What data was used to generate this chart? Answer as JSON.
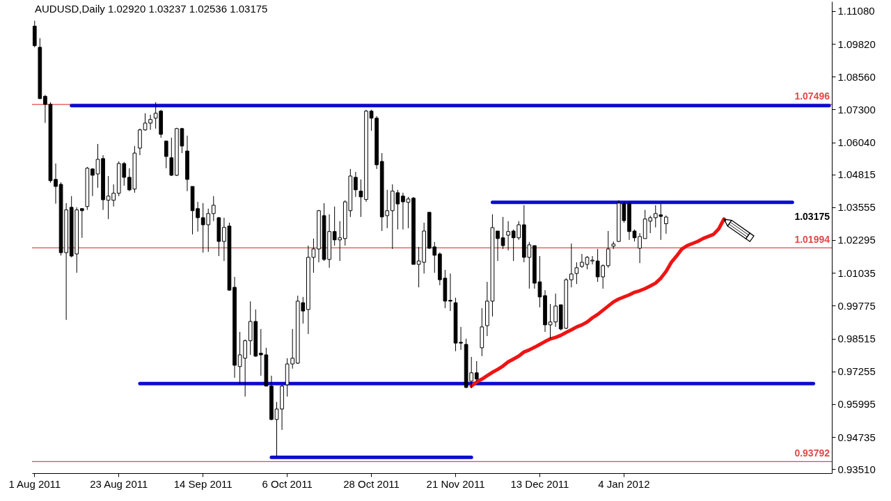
{
  "chart_data": {
    "type": "candlestick",
    "title": "AUDUSD,Daily 1.02920 1.03237 1.02536 1.03175",
    "categories": [
      "1 Aug 2011",
      null,
      null,
      null,
      null,
      null,
      null,
      null,
      null,
      null,
      null,
      null,
      null,
      null,
      null,
      null,
      "23 Aug 2011",
      null,
      null,
      null,
      null,
      null,
      null,
      null,
      null,
      null,
      null,
      null,
      null,
      null,
      null,
      null,
      "14 Sep 2011",
      null,
      null,
      null,
      null,
      null,
      null,
      null,
      null,
      null,
      null,
      null,
      null,
      null,
      null,
      null,
      "6 Oct 2011",
      null,
      null,
      null,
      null,
      null,
      null,
      null,
      null,
      null,
      null,
      null,
      null,
      null,
      null,
      null,
      "28 Oct 2011",
      null,
      null,
      null,
      null,
      null,
      null,
      null,
      null,
      null,
      null,
      null,
      null,
      null,
      null,
      null,
      "21 Nov 2011",
      null,
      null,
      null,
      null,
      null,
      null,
      null,
      null,
      null,
      null,
      null,
      null,
      null,
      null,
      null,
      "13 Dec 2011",
      null,
      null,
      null,
      null,
      null,
      null,
      null,
      null,
      null,
      null,
      null,
      null,
      null,
      null,
      null,
      "4 Jan 2012",
      null,
      null,
      null,
      null,
      null,
      null,
      null,
      null,
      null,
      null,
      null,
      null,
      null,
      null,
      null,
      null,
      null,
      null,
      null,
      null,
      null,
      null,
      null,
      null,
      null,
      null,
      null,
      null,
      null,
      null,
      null,
      null,
      null,
      null,
      null,
      null,
      null,
      null,
      null
    ],
    "ohlc": [
      [
        1.105,
        1.1071,
        1.0969,
        1.0975
      ],
      [
        1.0969,
        1.1004,
        1.077,
        1.0772
      ],
      [
        1.0781,
        1.0786,
        1.0679,
        1.075
      ],
      [
        1.075,
        1.0758,
        1.0449,
        1.0457
      ],
      [
        1.0462,
        1.0523,
        1.0369,
        1.0435
      ],
      [
        1.0443,
        1.0451,
        1.017,
        1.0181
      ],
      [
        1.0181,
        1.0371,
        0.9923,
        1.0345
      ],
      [
        1.0355,
        1.0398,
        1.0163,
        1.0168
      ],
      [
        1.0176,
        1.0355,
        1.0104,
        1.0345
      ],
      [
        1.035,
        1.0352,
        1.0238,
        1.0342
      ],
      [
        1.0358,
        1.051,
        1.0345,
        1.0505
      ],
      [
        1.0502,
        1.0505,
        1.0398,
        1.0478
      ],
      [
        1.0483,
        1.0598,
        1.043,
        1.0539
      ],
      [
        1.0542,
        1.0555,
        1.0345,
        1.0384
      ],
      [
        1.0382,
        1.0475,
        1.031,
        1.0398
      ],
      [
        1.0382,
        1.0443,
        1.0358,
        1.0409
      ],
      [
        1.0409,
        1.0531,
        1.0398,
        1.0523
      ],
      [
        1.0523,
        1.0529,
        1.0438,
        1.047
      ],
      [
        1.047,
        1.0505,
        1.0417,
        1.0422
      ],
      [
        1.0425,
        1.059,
        1.0411,
        1.0563
      ],
      [
        1.0582,
        1.0657,
        1.0555,
        1.0652
      ],
      [
        1.0652,
        1.0716,
        1.0649,
        1.0678
      ],
      [
        1.0678,
        1.071,
        1.0652,
        1.0692
      ],
      [
        1.0697,
        1.0758,
        1.0657,
        1.0716
      ],
      [
        1.0724,
        1.0729,
        1.0622,
        1.0635
      ],
      [
        1.0609,
        1.0611,
        1.0505,
        1.055
      ],
      [
        1.0545,
        1.0622,
        1.0475,
        1.0478
      ],
      [
        1.0478,
        1.066,
        1.0475,
        1.0657
      ],
      [
        1.0657,
        1.066,
        1.0563,
        1.059
      ],
      [
        1.0571,
        1.063,
        1.0417,
        1.0462
      ],
      [
        1.0435,
        1.0435,
        1.0251,
        1.0342
      ],
      [
        1.035,
        1.0376,
        1.0262,
        1.0315
      ],
      [
        1.0315,
        1.0371,
        1.0181,
        1.0288
      ],
      [
        1.0288,
        1.035,
        1.0184,
        1.0331
      ],
      [
        1.0331,
        1.0398,
        1.0302,
        1.0363
      ],
      [
        1.0315,
        1.0318,
        1.0168,
        1.0224
      ],
      [
        1.0224,
        1.0315,
        1.0149,
        1.0278
      ],
      [
        1.0283,
        1.0296,
        1.0035,
        1.0037
      ],
      [
        1.0048,
        1.0088,
        0.9701,
        0.9749
      ],
      [
        0.9744,
        0.9877,
        0.9677,
        0.9789
      ],
      [
        0.9776,
        0.9848,
        0.9629,
        0.9843
      ],
      [
        0.9843,
        0.9994,
        0.9789,
        0.9917
      ],
      [
        0.9917,
        0.9963,
        0.9781,
        0.9784
      ],
      [
        0.9795,
        0.9888,
        0.9709,
        0.9789
      ],
      [
        0.9789,
        0.9816,
        0.9669,
        0.9669
      ],
      [
        0.9669,
        0.9709,
        0.9538,
        0.9541
      ],
      [
        0.9541,
        0.9608,
        0.94,
        0.9581
      ],
      [
        0.9581,
        0.9674,
        0.9501,
        0.9669
      ],
      [
        0.9674,
        0.9776,
        0.9629,
        0.9754
      ],
      [
        0.9754,
        0.9888,
        0.9736,
        0.9776
      ],
      [
        0.9757,
        1.0016,
        0.9754,
        0.9995
      ],
      [
        0.9989,
        1.0011,
        0.9909,
        0.9957
      ],
      [
        0.9963,
        1.0208,
        0.9869,
        1.0163
      ],
      [
        1.0163,
        1.0235,
        1.0104,
        1.0195
      ],
      [
        1.0195,
        1.0345,
        1.0144,
        1.0342
      ],
      [
        1.0323,
        1.0371,
        1.0149,
        1.0155
      ],
      [
        1.0155,
        1.0328,
        1.0123,
        1.0262
      ],
      [
        1.0262,
        1.0358,
        1.0208,
        1.023
      ],
      [
        1.023,
        1.0302,
        1.0149,
        1.0238
      ],
      [
        1.0235,
        1.0382,
        1.0208,
        1.0376
      ],
      [
        1.0342,
        1.0502,
        1.0318,
        1.0475
      ],
      [
        1.047,
        1.0491,
        1.0395,
        1.0422
      ],
      [
        1.0417,
        1.0462,
        1.0318,
        1.0395
      ],
      [
        1.0385,
        1.0729,
        1.0376,
        1.0724
      ],
      [
        1.0724,
        1.0729,
        1.0649,
        1.0697
      ],
      [
        1.0697,
        1.0705,
        1.0502,
        1.0518
      ],
      [
        1.0531,
        1.0563,
        1.0264,
        1.0318
      ],
      [
        1.0323,
        1.0422,
        1.0275,
        1.0342
      ],
      [
        1.0342,
        1.0443,
        1.0195,
        1.0417
      ],
      [
        1.0411,
        1.0422,
        1.027,
        1.0368
      ],
      [
        1.0398,
        1.0411,
        1.027,
        1.0376
      ],
      [
        1.0374,
        1.0395,
        1.0275,
        1.0387
      ],
      [
        1.039,
        1.0395,
        1.0136,
        1.0136
      ],
      [
        1.0136,
        1.0203,
        1.0048,
        1.0149
      ],
      [
        1.0144,
        1.0296,
        1.0101,
        1.0264
      ],
      [
        1.0336,
        1.0336,
        1.0195,
        1.0198
      ],
      [
        1.0203,
        1.0222,
        1.0104,
        1.0171
      ],
      [
        1.0176,
        1.0182,
        1.0056,
        1.0077
      ],
      [
        1.0083,
        1.0115,
        0.9968,
        0.9995
      ],
      [
        0.9998,
        1.0101,
        0.9957,
        0.9995
      ],
      [
        0.9989,
        1.0008,
        0.9803,
        0.9834
      ],
      [
        0.9837,
        0.9896,
        0.9808,
        0.9834
      ],
      [
        0.9829,
        0.9851,
        0.9661,
        0.9664
      ],
      [
        0.9688,
        0.9781,
        0.9661,
        0.972
      ],
      [
        0.972,
        0.9765,
        0.9688,
        0.9696
      ],
      [
        0.9816,
        0.9968,
        0.9784,
        0.9896
      ],
      [
        0.9901,
        1.0069,
        0.9861,
        0.9995
      ],
      [
        0.9995,
        1.0328,
        0.9936,
        1.0277
      ],
      [
        1.0264,
        1.0264,
        1.0149,
        1.0235
      ],
      [
        1.0238,
        1.0318,
        1.0195,
        1.0208
      ],
      [
        1.0248,
        1.0302,
        1.019,
        1.0262
      ],
      [
        1.0264,
        1.027,
        1.0149,
        1.0238
      ],
      [
        1.0238,
        1.0302,
        1.023,
        1.0288
      ],
      [
        1.0288,
        1.0363,
        1.0144,
        1.0163
      ],
      [
        1.0163,
        1.0222,
        1.0043,
        1.0211
      ],
      [
        1.0208,
        1.0208,
        1.0043,
        1.0064
      ],
      [
        1.0069,
        1.0168,
        0.9971,
        1.0011
      ],
      [
        1.0016,
        1.0037,
        0.9877,
        0.9904
      ],
      [
        0.9904,
        0.9984,
        0.9851,
        0.9915
      ],
      [
        0.9915,
        1.0024,
        0.9896,
        0.9976
      ],
      [
        0.9981,
        0.9981,
        0.9883,
        0.9888
      ],
      [
        0.9891,
        1.0083,
        0.9888,
        1.0077
      ],
      [
        1.0077,
        1.0216,
        1.0048,
        1.0099
      ],
      [
        1.0101,
        1.0144,
        1.0061,
        1.0123
      ],
      [
        1.0128,
        1.0176,
        1.0123,
        1.0144
      ],
      [
        1.0136,
        1.0168,
        1.0117,
        1.0163
      ],
      [
        1.0149,
        1.0168,
        1.0136,
        1.0152
      ],
      [
        1.0149,
        1.0195,
        1.0069,
        1.0088
      ],
      [
        1.0088,
        1.0136,
        1.0043,
        1.0131
      ],
      [
        1.0131,
        1.0264,
        1.0123,
        1.0195
      ],
      [
        1.0206,
        1.0224,
        1.0195,
        1.0214
      ],
      [
        1.0224,
        1.0382,
        1.0222,
        1.0371
      ],
      [
        1.0368,
        1.0376,
        1.0296,
        1.0304
      ],
      [
        1.0368,
        1.0376,
        1.023,
        1.0262
      ],
      [
        1.0264,
        1.027,
        1.0224,
        1.0238
      ],
      [
        1.0198,
        1.0256,
        1.0141,
        1.0243
      ],
      [
        1.0235,
        1.0345,
        1.0235,
        1.031
      ],
      [
        1.0302,
        1.0323,
        1.0256,
        1.0315
      ],
      [
        1.0315,
        1.0363,
        1.0278,
        1.0331
      ],
      [
        1.0326,
        1.0368,
        1.023,
        1.032
      ],
      [
        1.0292,
        1.03237,
        1.02536,
        1.03175
      ],
      null,
      null,
      null,
      null,
      null,
      null,
      null,
      null,
      null,
      null,
      null,
      null,
      null,
      null,
      null,
      null,
      null,
      null,
      null,
      null,
      null,
      null,
      null,
      null,
      null,
      null,
      null,
      null,
      null,
      null,
      null
    ],
    "color": "#000000",
    "ylim": [
      0.9335,
      1.1145
    ],
    "yticks": [
      {
        "value": 1.1108,
        "label": "1.11080"
      },
      {
        "value": 1.0982,
        "label": "1.09820"
      },
      {
        "value": 1.0856,
        "label": "1.08560"
      },
      {
        "value": 1.073,
        "label": "1.07300"
      },
      {
        "value": 1.0604,
        "label": "1.06040"
      },
      1.04815,
      1.03555,
      1.02295,
      1.01035,
      0.99775,
      0.98515,
      0.97255,
      0.95995,
      0.94735,
      {
        "value": 0.9351,
        "label": "0.93510"
      }
    ],
    "series": [
      {
        "type": "line",
        "color": "#0b0bd0",
        "values": [
          null,
          null,
          null,
          null,
          null,
          null,
          null,
          1.0745,
          1.0745,
          1.0745,
          1.0745,
          1.0745,
          1.0745,
          1.0745,
          1.0745,
          1.0745,
          1.0745,
          1.0745,
          1.0745,
          1.0745,
          1.0745,
          1.0745,
          1.0745,
          1.0745,
          1.0745,
          1.0745,
          1.0745,
          1.0745,
          1.0745,
          1.0745,
          1.0745,
          1.0745,
          1.0745,
          1.0745,
          1.0745,
          1.0745,
          1.0745,
          1.0745,
          1.0745,
          1.0745,
          1.0745,
          1.0745,
          1.0745,
          1.0745,
          1.0745,
          1.0745,
          1.0745,
          1.0745,
          1.0745,
          1.0745,
          1.0745,
          1.0745,
          1.0745,
          1.0745,
          1.0745,
          1.0745,
          1.0745,
          1.0745,
          1.0745,
          1.0745,
          1.0745,
          1.0745,
          1.0745,
          1.0745,
          1.0745,
          1.0745,
          1.0745,
          1.0745,
          1.0745,
          1.0745,
          1.0745,
          1.0745,
          1.0745,
          1.0745,
          1.0745,
          1.0745,
          1.0745,
          1.0745,
          1.0745,
          1.0745,
          1.0745,
          1.0745,
          1.0745,
          1.0745,
          1.0745,
          1.0745,
          1.0745,
          1.0745,
          1.0745,
          1.0745,
          1.0745,
          1.0745,
          1.0745,
          1.0745,
          1.0745,
          1.0745,
          1.0745,
          1.0745,
          1.0745,
          1.0745,
          1.0745,
          1.0745,
          1.0745,
          1.0745,
          1.0745,
          1.0745,
          1.0745,
          1.0745,
          1.0745,
          1.0745,
          1.0745,
          1.0745,
          1.0745,
          1.0745,
          1.0745,
          1.0745,
          1.0745,
          1.0745,
          1.0745,
          1.0745,
          1.0745,
          1.0745,
          1.0745,
          1.0745,
          1.0745,
          1.0745,
          1.0745,
          1.0745,
          1.0745,
          1.0745,
          1.0745,
          1.0745,
          1.0745,
          1.0745,
          1.0745,
          1.0745,
          1.0745,
          1.0745,
          1.0745,
          1.0745,
          1.0745,
          1.0745,
          1.0745,
          1.0745,
          1.0745,
          1.0745,
          1.0745,
          1.0745,
          1.0745,
          1.0745,
          1.0745,
          1.0745
        ]
      },
      {
        "type": "line",
        "color": "#0b0bd0",
        "values": [
          null,
          null,
          null,
          null,
          null,
          null,
          null,
          null,
          null,
          null,
          null,
          null,
          null,
          null,
          null,
          null,
          null,
          null,
          null,
          null,
          null,
          null,
          null,
          null,
          null,
          null,
          null,
          null,
          null,
          null,
          null,
          null,
          null,
          null,
          null,
          null,
          null,
          null,
          null,
          null,
          null,
          null,
          null,
          null,
          null,
          null,
          null,
          null,
          null,
          null,
          null,
          null,
          null,
          null,
          null,
          null,
          null,
          null,
          null,
          null,
          null,
          null,
          null,
          null,
          null,
          null,
          null,
          null,
          null,
          null,
          null,
          null,
          null,
          null,
          null,
          null,
          null,
          null,
          null,
          null,
          null,
          null,
          null,
          null,
          null,
          null,
          null,
          1.0374,
          1.0374,
          1.0374,
          1.0374,
          1.0374,
          1.0374,
          1.0374,
          1.0374,
          1.0374,
          1.0374,
          1.0374,
          1.0374,
          1.0374,
          1.0374,
          1.0374,
          1.0374,
          1.0374,
          1.0374,
          1.0374,
          1.0374,
          1.0374,
          1.0374,
          1.0374,
          1.0374,
          1.0374,
          1.0374,
          1.0374,
          1.0374,
          1.0374,
          1.0374,
          1.0374,
          1.0374,
          1.0374,
          1.0374,
          1.0374,
          1.0374,
          1.0374,
          1.0374,
          1.0374,
          1.0374,
          1.0374,
          1.0374,
          1.0374,
          1.0374,
          1.0374,
          1.0374,
          1.0374,
          1.0374,
          1.0374,
          1.0374,
          1.0374,
          1.0374,
          1.0374,
          1.0374,
          1.0374,
          1.0374,
          1.0374,
          1.0374,
          null,
          null,
          null,
          null,
          null,
          null,
          null
        ]
      },
      {
        "type": "line",
        "color": "#0b0bd0",
        "values": [
          null,
          null,
          null,
          null,
          null,
          null,
          null,
          null,
          null,
          null,
          null,
          null,
          null,
          null,
          null,
          null,
          null,
          null,
          null,
          null,
          0.9679,
          0.9679,
          0.9679,
          0.9679,
          0.9679,
          0.9679,
          0.9679,
          0.9679,
          0.9679,
          0.9679,
          0.9679,
          0.9679,
          0.9679,
          0.9679,
          0.9679,
          0.9679,
          0.9679,
          0.9679,
          0.9679,
          0.9679,
          0.9679,
          0.9679,
          0.9679,
          0.9679,
          0.9679,
          0.9679,
          0.9679,
          0.9679,
          0.9679,
          0.9679,
          0.9679,
          0.9679,
          0.9679,
          0.9679,
          0.9679,
          0.9679,
          0.9679,
          0.9679,
          0.9679,
          0.9679,
          0.9679,
          0.9679,
          0.9679,
          0.9679,
          0.9679,
          0.9679,
          0.9679,
          0.9679,
          0.9679,
          0.9679,
          0.9679,
          0.9679,
          0.9679,
          0.9679,
          0.9679,
          0.9679,
          0.9679,
          0.9679,
          0.9679,
          0.9679,
          0.9679,
          0.9679,
          0.9679,
          0.9679,
          0.9679,
          0.9679,
          0.9679,
          0.9679,
          0.9679,
          0.9679,
          0.9679,
          0.9679,
          0.9679,
          0.9679,
          0.9679,
          0.9679,
          0.9679,
          0.9679,
          0.9679,
          0.9679,
          0.9679,
          0.9679,
          0.9679,
          0.9679,
          0.9679,
          0.9679,
          0.9679,
          0.9679,
          0.9679,
          0.9679,
          0.9679,
          0.9679,
          0.9679,
          0.9679,
          0.9679,
          0.9679,
          0.9679,
          0.9679,
          0.9679,
          0.9679,
          0.9679,
          0.9679,
          0.9679,
          0.9679,
          0.9679,
          0.9679,
          0.9679,
          0.9679,
          0.9679,
          0.9679,
          0.9679,
          0.9679,
          0.9679,
          0.9679,
          0.9679,
          0.9679,
          0.9679,
          0.9679,
          0.9679,
          0.9679,
          0.9679,
          0.9679,
          0.9679,
          0.9679,
          0.9679,
          0.9679,
          0.9679,
          0.9679,
          0.9679,
          null,
          null,
          null
        ]
      },
      {
        "type": "line",
        "color": "#0b0bd0",
        "values": [
          null,
          null,
          null,
          null,
          null,
          null,
          null,
          null,
          null,
          null,
          null,
          null,
          null,
          null,
          null,
          null,
          null,
          null,
          null,
          null,
          null,
          null,
          null,
          null,
          null,
          null,
          null,
          null,
          null,
          null,
          null,
          null,
          null,
          null,
          null,
          null,
          null,
          null,
          null,
          null,
          null,
          null,
          null,
          null,
          null,
          0.9396,
          0.9396,
          0.9396,
          0.9396,
          0.9396,
          0.9396,
          0.9396,
          0.9396,
          0.9396,
          0.9396,
          0.9396,
          0.9396,
          0.9396,
          0.9396,
          0.9396,
          0.9396,
          0.9396,
          0.9396,
          0.9396,
          0.9396,
          0.9396,
          0.9396,
          0.9396,
          0.9396,
          0.9396,
          0.9396,
          0.9396,
          0.9396,
          0.9396,
          0.9396,
          0.9396,
          0.9396,
          0.9396,
          0.9396,
          0.9396,
          0.9396,
          0.9396,
          0.9396,
          0.9396,
          null,
          null,
          null,
          null,
          null,
          null,
          null,
          null,
          null,
          null,
          null,
          null,
          null,
          null,
          null,
          null,
          null,
          null,
          null,
          null,
          null,
          null,
          null,
          null,
          null,
          null,
          null,
          null,
          null,
          null,
          null,
          null,
          null,
          null,
          null,
          null,
          null,
          null,
          null,
          null,
          null,
          null,
          null,
          null,
          null,
          null,
          null,
          null,
          null,
          null,
          null,
          null,
          null,
          null,
          null,
          null,
          null,
          null,
          null,
          null,
          null,
          null,
          null,
          null,
          null,
          null,
          null,
          null
        ]
      },
      {
        "type": "line",
        "color": "#ee1414",
        "values": [
          null,
          null,
          null,
          null,
          null,
          null,
          null,
          null,
          null,
          null,
          null,
          null,
          null,
          null,
          null,
          null,
          null,
          null,
          null,
          null,
          null,
          null,
          null,
          null,
          null,
          null,
          null,
          null,
          null,
          null,
          null,
          null,
          null,
          null,
          null,
          null,
          null,
          null,
          null,
          null,
          null,
          null,
          null,
          null,
          null,
          null,
          null,
          null,
          null,
          null,
          null,
          null,
          null,
          null,
          null,
          null,
          null,
          null,
          null,
          null,
          null,
          null,
          null,
          null,
          null,
          null,
          null,
          null,
          null,
          null,
          null,
          null,
          null,
          null,
          null,
          null,
          null,
          null,
          null,
          null,
          null,
          null,
          null,
          0.9669,
          0.9685,
          0.9696,
          0.9709,
          0.9722,
          0.9733,
          0.9746,
          0.9762,
          0.9773,
          0.9784,
          0.98,
          0.9808,
          0.9818,
          0.9829,
          0.984,
          0.985,
          0.9856,
          0.9864,
          0.9875,
          0.9885,
          0.9896,
          0.9904,
          0.9915,
          0.9931,
          0.9944,
          0.996,
          0.9976,
          0.9992,
          1.0003,
          1.0011,
          1.0019,
          1.0029,
          1.0035,
          1.0043,
          1.0053,
          1.0064,
          1.0083,
          1.0109,
          1.0144,
          1.0168,
          1.0195,
          1.0208,
          1.0216,
          1.0224,
          1.0235,
          1.0243,
          1.0251,
          1.0272,
          1.031,
          null,
          null,
          null,
          null,
          null,
          null,
          null,
          null,
          null,
          null,
          null,
          null,
          null,
          null,
          null,
          null,
          null,
          null,
          null,
          null
        ]
      }
    ],
    "ref_lines": [
      {
        "axis": "y",
        "value": 1.07496,
        "label": "1.07496",
        "color": "#e04848"
      },
      {
        "axis": "y",
        "value": 1.01994,
        "label": "1.01994",
        "color": "#e04848"
      },
      {
        "axis": "y",
        "value": 0.93792,
        "label": "0.93792",
        "color": "#e04848"
      }
    ],
    "annotations": [
      "1.03175"
    ]
  }
}
